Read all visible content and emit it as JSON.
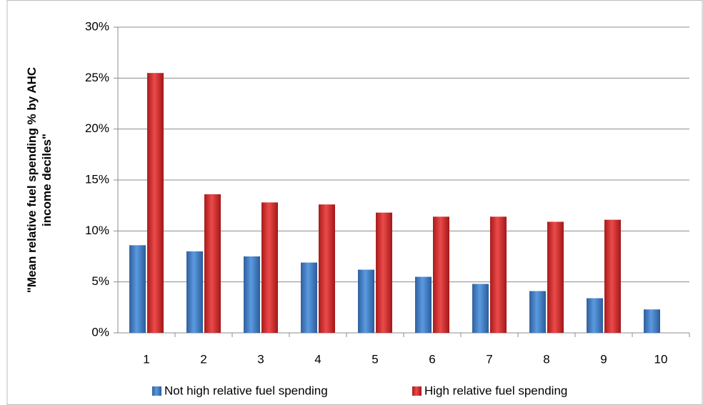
{
  "chart_data": {
    "type": "bar",
    "y_label": "\"Mean relative fuel spending % by AHC income deciles\"",
    "categories": [
      "1",
      "2",
      "3",
      "4",
      "5",
      "6",
      "7",
      "8",
      "9",
      "10"
    ],
    "series": [
      {
        "name": "Not high relative fuel spending",
        "color": "#3a7cc8",
        "values": [
          8.6,
          8.0,
          7.5,
          6.9,
          6.2,
          5.5,
          4.8,
          4.1,
          3.4,
          2.3
        ]
      },
      {
        "name": "High relative fuel spending",
        "color": "#d42a2a",
        "values": [
          25.5,
          13.6,
          12.8,
          12.6,
          11.8,
          11.4,
          11.4,
          10.9,
          11.1,
          null
        ]
      }
    ],
    "ylim": [
      0,
      30
    ],
    "yticks": [
      {
        "value": 0,
        "label": "0%"
      },
      {
        "value": 5,
        "label": "5%"
      },
      {
        "value": 10,
        "label": "10%"
      },
      {
        "value": 15,
        "label": "15%"
      },
      {
        "value": 20,
        "label": "20%"
      },
      {
        "value": 25,
        "label": "25%"
      },
      {
        "value": 30,
        "label": "30%"
      }
    ],
    "grid": true,
    "legend": "bottom"
  }
}
